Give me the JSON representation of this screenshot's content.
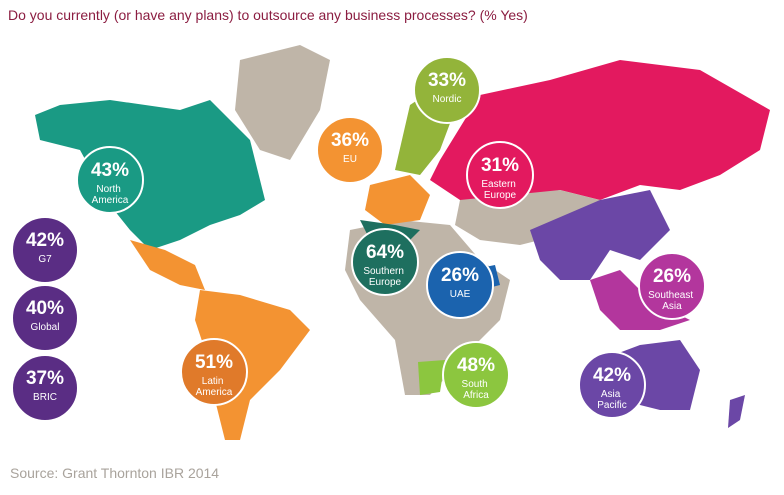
{
  "title": "Do you currently (or have any plans) to outsource any business processes? (% Yes)",
  "source": "Source: Grant Thornton IBR 2014",
  "regions": [
    {
      "name": "North America",
      "percent": "43%",
      "color": "#1a9a84"
    },
    {
      "name": "EU",
      "percent": "36%",
      "color": "#f39332"
    },
    {
      "name": "Nordic",
      "percent": "33%",
      "color": "#93b43a"
    },
    {
      "name": "Eastern Europe",
      "percent": "31%",
      "color": "#e3195f"
    },
    {
      "name": "G7",
      "percent": "42%",
      "color": "#5a2d84"
    },
    {
      "name": "Southern Europe",
      "percent": "64%",
      "color": "#1e6f5f"
    },
    {
      "name": "UAE",
      "percent": "26%",
      "color": "#1b63ae"
    },
    {
      "name": "Southeast Asia",
      "percent": "26%",
      "color": "#b3369d"
    },
    {
      "name": "Global",
      "percent": "40%",
      "color": "#5a2d84"
    },
    {
      "name": "BRIC",
      "percent": "37%",
      "color": "#5a2d84"
    },
    {
      "name": "Latin America",
      "percent": "51%",
      "color": "#e07a2a"
    },
    {
      "name": "South Africa",
      "percent": "48%",
      "color": "#8cc63f"
    },
    {
      "name": "Asia Pacific",
      "percent": "42%",
      "color": "#6b47a6"
    }
  ]
}
